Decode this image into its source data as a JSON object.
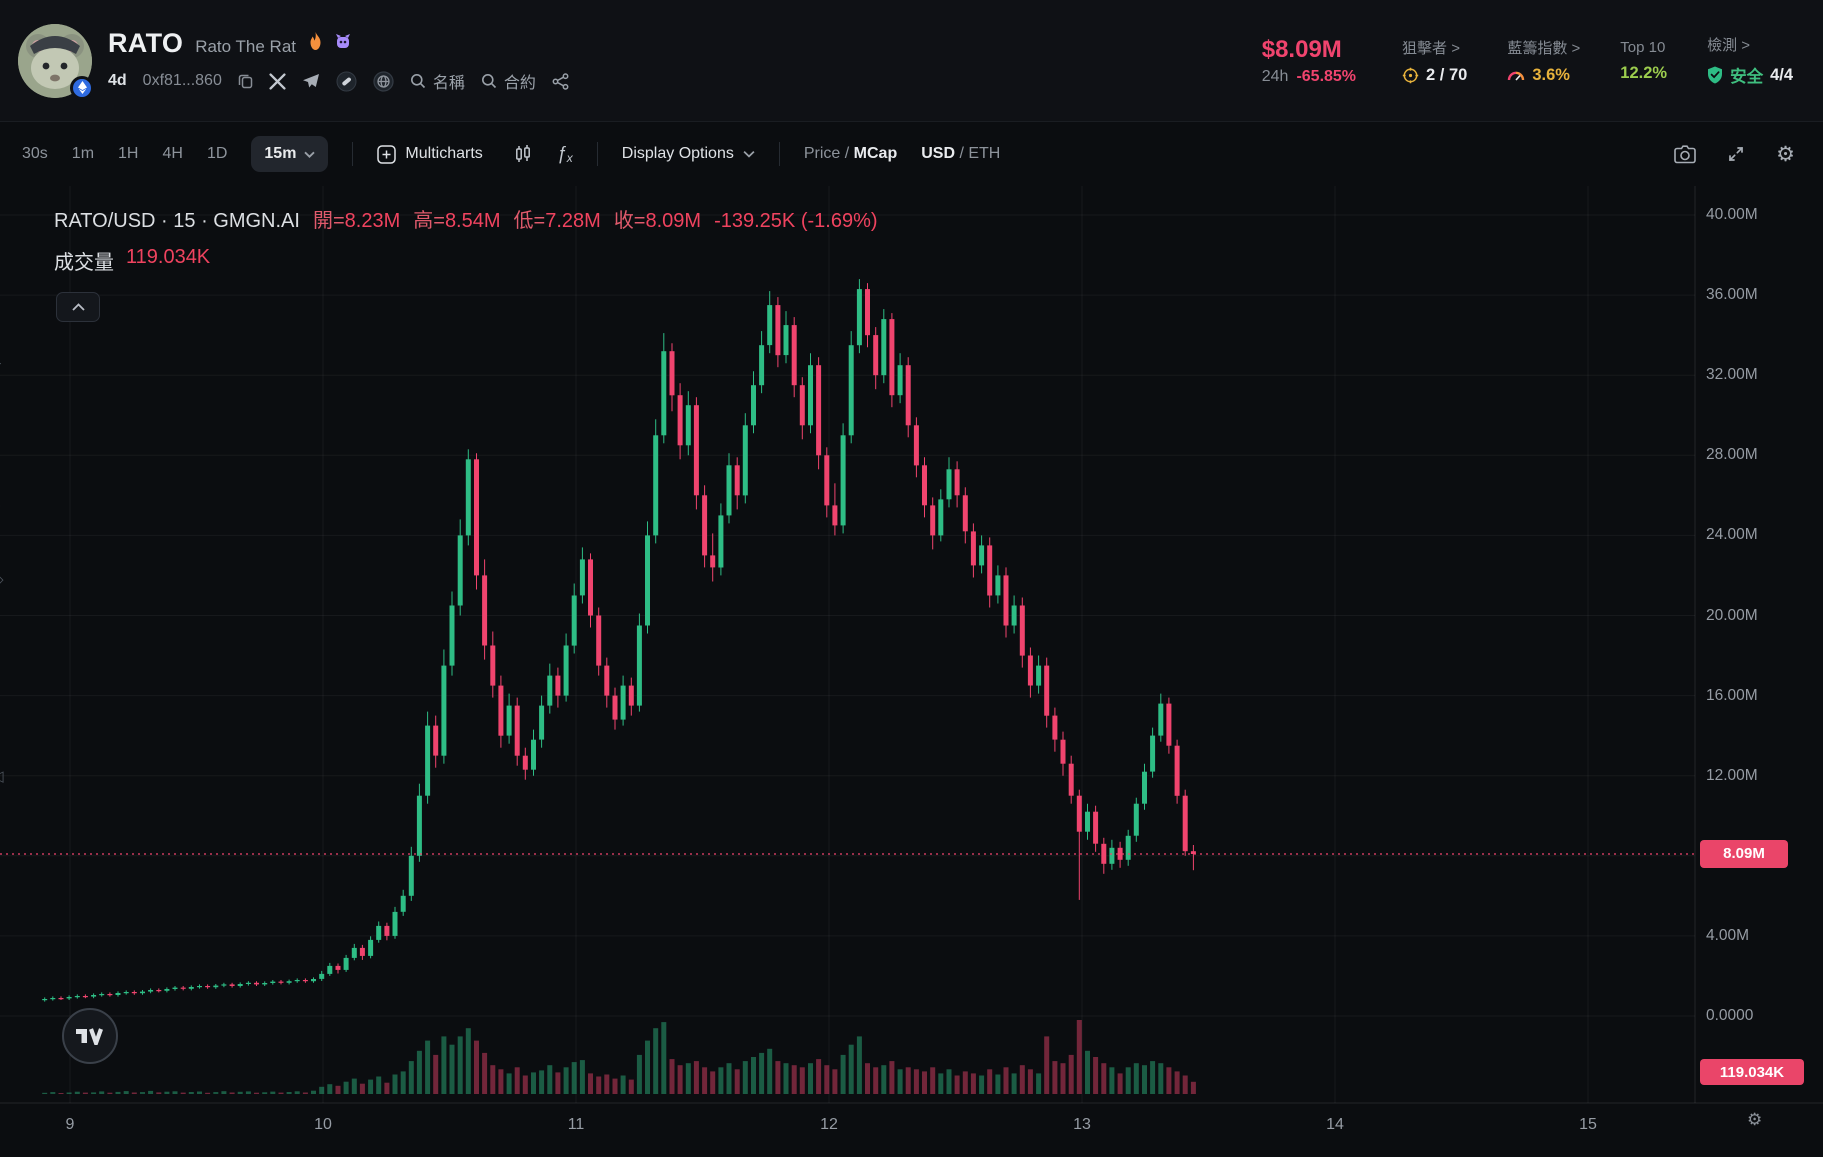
{
  "colors": {
    "bg": "#0b0d10",
    "bg_header": "#0f1115",
    "text": "#e9ebee",
    "muted": "#878d95",
    "up": "#2ebd85",
    "down": "#f0446e",
    "badge": "#ea4569",
    "yellow": "#e8b33c",
    "lime": "#9ccd4e",
    "green_safe": "#3fbf7f",
    "grid": "rgba(255,255,255,0.05)",
    "axis_border": "rgba(255,255,255,0.10)",
    "axis_text": "#969ca4"
  },
  "header": {
    "symbol": "RATO",
    "name": "Rato The Rat",
    "age": "4d",
    "contract": "0xf81...860",
    "search_name": "名稱",
    "search_contract": "合約",
    "mcap": "$8.09M",
    "period": "24h",
    "change": "-65.85%",
    "stats": [
      {
        "label": "狙擊者 >",
        "value": "2 / 70"
      },
      {
        "label": "藍籌指數 >",
        "value": "3.6%"
      },
      {
        "label": "Top 10",
        "value": "12.2%"
      },
      {
        "label": "檢測 >",
        "value": "安全",
        "value2": "4/4"
      }
    ]
  },
  "toolbar": {
    "intervals": [
      "30s",
      "1m",
      "1H",
      "4H",
      "1D"
    ],
    "active_interval": "15m",
    "multicharts": "Multicharts",
    "display_options": "Display Options",
    "price_label": "Price",
    "sep": "/",
    "mcap_label": "MCap",
    "usd_label": "USD",
    "eth_label": "ETH"
  },
  "legend": {
    "title": "RATO/USD · 15 · GMGN.AI",
    "open_label": "開=",
    "open": "8.23M",
    "high_label": "高=",
    "high": "8.54M",
    "low_label": "低=",
    "low": "7.28M",
    "close_label": "收=",
    "close": "8.09M",
    "change": "-139.25K (-1.69%)",
    "volume_label": "成交量",
    "volume": "119.034K"
  },
  "axis": {
    "y_ticks": [
      "40.00M",
      "36.00M",
      "32.00M",
      "28.00M",
      "24.00M",
      "20.00M",
      "16.00M",
      "12.00M",
      "8.00M",
      "4.00M",
      "0.0000"
    ],
    "x_ticks": [
      "9",
      "10",
      "11",
      "12",
      "13",
      "14",
      "15"
    ],
    "price_badge": "8.09M",
    "volume_badge": "119.034K"
  },
  "icons": {
    "gear": "⚙",
    "fx_f": "ƒ",
    "fx_x": "x",
    "left_strip": [
      "T",
      "○",
      "+",
      "◇",
      "○",
      "◁"
    ]
  },
  "chart_data": {
    "type": "candlestick",
    "symbol": "RATO/USD",
    "interval": "15m",
    "platform": "GMGN.AI",
    "x_unit": "day_of_month",
    "x_axis_days": [
      9,
      10,
      11,
      12,
      13,
      14,
      15
    ],
    "y_ticks_millions": [
      40,
      36,
      32,
      28,
      24,
      20,
      16,
      12,
      8,
      4,
      0
    ],
    "y_range_millions": [
      0,
      40
    ],
    "current_price_millions": 8.09,
    "last_candle": {
      "open": "8.23M",
      "high": "8.54M",
      "low": "7.28M",
      "close": "8.09M",
      "change": "-139.25K",
      "change_pct": "-1.69%",
      "volume": "119.034K"
    },
    "start_day": 8.9,
    "step_day": 0.0322,
    "candles_ohlc_millions": [
      [
        0.8,
        0.93,
        0.72,
        0.85
      ],
      [
        0.85,
        0.98,
        0.77,
        0.9
      ],
      [
        0.9,
        0.98,
        0.8,
        0.88
      ],
      [
        0.88,
        1.03,
        0.8,
        0.95
      ],
      [
        0.95,
        1.08,
        0.87,
        1.0
      ],
      [
        1.0,
        1.08,
        0.89,
        0.97
      ],
      [
        0.97,
        1.13,
        0.89,
        1.05
      ],
      [
        1.05,
        1.18,
        0.97,
        1.1
      ],
      [
        1.1,
        1.18,
        0.97,
        1.05
      ],
      [
        1.05,
        1.23,
        0.97,
        1.15
      ],
      [
        1.15,
        1.28,
        1.07,
        1.2
      ],
      [
        1.2,
        1.28,
        1.06,
        1.14
      ],
      [
        1.14,
        1.3,
        1.06,
        1.22
      ],
      [
        1.22,
        1.38,
        1.14,
        1.3
      ],
      [
        1.3,
        1.38,
        1.18,
        1.26
      ],
      [
        1.26,
        1.43,
        1.18,
        1.35
      ],
      [
        1.35,
        1.5,
        1.27,
        1.42
      ],
      [
        1.42,
        1.5,
        1.28,
        1.36
      ],
      [
        1.36,
        1.53,
        1.28,
        1.45
      ],
      [
        1.45,
        1.58,
        1.37,
        1.5
      ],
      [
        1.5,
        1.58,
        1.36,
        1.44
      ],
      [
        1.44,
        1.6,
        1.36,
        1.52
      ],
      [
        1.52,
        1.66,
        1.44,
        1.58
      ],
      [
        1.58,
        1.66,
        1.42,
        1.5
      ],
      [
        1.5,
        1.68,
        1.42,
        1.6
      ],
      [
        1.6,
        1.74,
        1.52,
        1.66
      ],
      [
        1.66,
        1.74,
        1.5,
        1.58
      ],
      [
        1.58,
        1.73,
        1.5,
        1.65
      ],
      [
        1.65,
        1.8,
        1.57,
        1.72
      ],
      [
        1.72,
        1.8,
        1.58,
        1.66
      ],
      [
        1.66,
        1.82,
        1.58,
        1.74
      ],
      [
        1.74,
        1.88,
        1.66,
        1.8
      ],
      [
        1.8,
        1.88,
        1.66,
        1.74
      ],
      [
        1.74,
        1.93,
        1.66,
        1.85
      ],
      [
        1.85,
        2.25,
        1.75,
        2.1
      ],
      [
        2.1,
        2.65,
        2.0,
        2.5
      ],
      [
        2.5,
        2.62,
        2.12,
        2.3
      ],
      [
        2.3,
        3.05,
        2.2,
        2.9
      ],
      [
        2.9,
        3.6,
        2.78,
        3.4
      ],
      [
        3.4,
        3.55,
        2.8,
        3.0
      ],
      [
        3.0,
        3.98,
        2.88,
        3.8
      ],
      [
        3.8,
        4.72,
        3.66,
        4.5
      ],
      [
        4.5,
        4.66,
        3.78,
        4.0
      ],
      [
        4.0,
        5.45,
        3.86,
        5.2
      ],
      [
        5.2,
        6.3,
        5.0,
        6.0
      ],
      [
        6.0,
        8.45,
        5.75,
        8.0
      ],
      [
        8.0,
        11.6,
        7.7,
        11.0
      ],
      [
        11.0,
        15.2,
        10.6,
        14.5
      ],
      [
        14.5,
        15.0,
        12.4,
        13.0
      ],
      [
        13.0,
        18.3,
        12.6,
        17.5
      ],
      [
        17.5,
        21.2,
        17.0,
        20.5
      ],
      [
        20.5,
        24.8,
        20.0,
        24.0
      ],
      [
        24.0,
        28.3,
        23.5,
        27.8
      ],
      [
        27.8,
        28.1,
        21.3,
        22.0
      ],
      [
        22.0,
        22.8,
        17.8,
        18.5
      ],
      [
        18.5,
        19.2,
        15.9,
        16.5
      ],
      [
        16.5,
        17.0,
        13.4,
        14.0
      ],
      [
        14.0,
        16.1,
        13.6,
        15.5
      ],
      [
        15.5,
        15.9,
        12.5,
        13.0
      ],
      [
        13.0,
        13.4,
        11.8,
        12.3
      ],
      [
        12.3,
        14.3,
        12.0,
        13.8
      ],
      [
        13.8,
        16.0,
        13.4,
        15.5
      ],
      [
        15.5,
        17.6,
        15.1,
        17.0
      ],
      [
        17.0,
        17.4,
        15.4,
        16.0
      ],
      [
        16.0,
        19.1,
        15.7,
        18.5
      ],
      [
        18.5,
        21.6,
        18.1,
        21.0
      ],
      [
        21.0,
        23.4,
        20.6,
        22.8
      ],
      [
        22.8,
        23.1,
        19.4,
        20.0
      ],
      [
        20.0,
        20.4,
        17.0,
        17.5
      ],
      [
        17.5,
        17.9,
        15.4,
        16.0
      ],
      [
        16.0,
        16.4,
        14.3,
        14.8
      ],
      [
        14.8,
        17.0,
        14.5,
        16.5
      ],
      [
        16.5,
        16.9,
        15.0,
        15.5
      ],
      [
        15.5,
        20.1,
        15.2,
        19.5
      ],
      [
        19.5,
        24.7,
        19.1,
        24.0
      ],
      [
        24.0,
        29.8,
        23.6,
        29.0
      ],
      [
        29.0,
        34.1,
        28.6,
        33.2
      ],
      [
        33.2,
        33.6,
        30.2,
        31.0
      ],
      [
        31.0,
        31.6,
        27.8,
        28.5
      ],
      [
        28.5,
        31.2,
        28.0,
        30.5
      ],
      [
        30.5,
        30.9,
        25.3,
        26.0
      ],
      [
        26.0,
        26.5,
        22.4,
        23.0
      ],
      [
        23.0,
        24.1,
        21.7,
        22.4
      ],
      [
        22.4,
        25.6,
        22.0,
        25.0
      ],
      [
        25.0,
        28.1,
        24.6,
        27.5
      ],
      [
        27.5,
        27.9,
        25.3,
        26.0
      ],
      [
        26.0,
        30.1,
        25.6,
        29.5
      ],
      [
        29.5,
        32.2,
        29.1,
        31.5
      ],
      [
        31.5,
        34.2,
        31.1,
        33.5
      ],
      [
        33.5,
        36.2,
        33.1,
        35.5
      ],
      [
        35.5,
        35.9,
        32.4,
        33.0
      ],
      [
        33.0,
        35.2,
        32.6,
        34.5
      ],
      [
        34.5,
        34.9,
        30.9,
        31.5
      ],
      [
        31.5,
        31.9,
        28.8,
        29.5
      ],
      [
        29.5,
        33.1,
        29.1,
        32.5
      ],
      [
        32.5,
        32.9,
        27.3,
        28.0
      ],
      [
        28.0,
        28.4,
        24.9,
        25.5
      ],
      [
        25.5,
        26.6,
        24.0,
        24.5
      ],
      [
        24.5,
        29.6,
        24.1,
        29.0
      ],
      [
        29.0,
        34.2,
        28.6,
        33.5
      ],
      [
        33.5,
        36.8,
        33.1,
        36.3
      ],
      [
        36.3,
        36.6,
        33.4,
        34.0
      ],
      [
        34.0,
        34.4,
        31.3,
        32.0
      ],
      [
        32.0,
        35.3,
        31.6,
        34.8
      ],
      [
        34.8,
        35.1,
        30.4,
        31.0
      ],
      [
        31.0,
        33.1,
        30.6,
        32.5
      ],
      [
        32.5,
        32.9,
        28.9,
        29.5
      ],
      [
        29.5,
        29.9,
        26.9,
        27.5
      ],
      [
        27.5,
        27.9,
        24.9,
        25.5
      ],
      [
        25.5,
        25.9,
        23.3,
        24.0
      ],
      [
        24.0,
        26.3,
        23.7,
        25.8
      ],
      [
        25.8,
        27.9,
        25.4,
        27.3
      ],
      [
        27.3,
        27.7,
        25.4,
        26.0
      ],
      [
        26.0,
        26.4,
        23.6,
        24.2
      ],
      [
        24.2,
        24.6,
        21.9,
        22.5
      ],
      [
        22.5,
        24.0,
        22.1,
        23.5
      ],
      [
        23.5,
        23.9,
        20.4,
        21.0
      ],
      [
        21.0,
        22.5,
        20.6,
        22.0
      ],
      [
        22.0,
        22.4,
        18.9,
        19.5
      ],
      [
        19.5,
        21.0,
        19.1,
        20.5
      ],
      [
        20.5,
        20.9,
        17.4,
        18.0
      ],
      [
        18.0,
        18.4,
        15.9,
        16.5
      ],
      [
        16.5,
        18.0,
        16.1,
        17.5
      ],
      [
        17.5,
        17.9,
        14.4,
        15.0
      ],
      [
        15.0,
        15.4,
        13.2,
        13.8
      ],
      [
        13.8,
        14.2,
        12.0,
        12.6
      ],
      [
        12.6,
        13.0,
        10.6,
        11.0
      ],
      [
        11.0,
        11.3,
        5.8,
        9.2
      ],
      [
        9.2,
        10.6,
        8.8,
        10.2
      ],
      [
        10.2,
        10.5,
        8.2,
        8.6
      ],
      [
        8.6,
        8.9,
        7.1,
        7.6
      ],
      [
        7.6,
        8.8,
        7.3,
        8.4
      ],
      [
        8.4,
        8.7,
        7.4,
        7.8
      ],
      [
        7.8,
        9.3,
        7.5,
        9.0
      ],
      [
        9.0,
        10.9,
        8.7,
        10.6
      ],
      [
        10.6,
        12.6,
        10.3,
        12.2
      ],
      [
        12.2,
        14.4,
        11.9,
        14.0
      ],
      [
        14.0,
        16.1,
        13.7,
        15.6
      ],
      [
        15.6,
        15.9,
        13.1,
        13.5
      ],
      [
        13.5,
        13.8,
        10.6,
        11.0
      ],
      [
        11.0,
        11.3,
        8.0,
        8.23
      ],
      [
        8.23,
        8.54,
        7.28,
        8.09
      ]
    ],
    "volumes_k": [
      12,
      18,
      10,
      15,
      22,
      14,
      16,
      25,
      13,
      20,
      28,
      15,
      18,
      30,
      16,
      22,
      26,
      14,
      19,
      24,
      12,
      18,
      27,
      15,
      21,
      25,
      13,
      17,
      23,
      14,
      19,
      26,
      15,
      32,
      70,
      95,
      80,
      120,
      150,
      100,
      140,
      170,
      110,
      190,
      220,
      320,
      420,
      520,
      380,
      560,
      480,
      560,
      640,
      520,
      400,
      280,
      240,
      200,
      260,
      180,
      210,
      230,
      280,
      210,
      260,
      310,
      330,
      200,
      170,
      190,
      150,
      180,
      140,
      380,
      520,
      640,
      700,
      340,
      280,
      300,
      320,
      260,
      220,
      260,
      300,
      240,
      320,
      360,
      400,
      440,
      320,
      300,
      280,
      260,
      300,
      340,
      280,
      240,
      380,
      480,
      560,
      300,
      260,
      280,
      320,
      240,
      260,
      240,
      220,
      260,
      200,
      240,
      180,
      220,
      200,
      180,
      240,
      190,
      260,
      200,
      280,
      240,
      200,
      560,
      320,
      300,
      380,
      720,
      420,
      360,
      300,
      260,
      200,
      260,
      300,
      280,
      320,
      300,
      260,
      220,
      180,
      119
    ]
  }
}
